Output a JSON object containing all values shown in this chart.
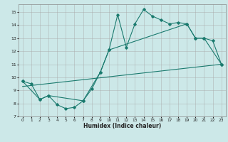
{
  "title": "",
  "xlabel": "Humidex (Indice chaleur)",
  "ylabel": "",
  "bg_color": "#cce8e8",
  "line_color": "#1a7a6e",
  "grid_color": "#aaaaaa",
  "xlim": [
    -0.5,
    23.5
  ],
  "ylim": [
    7,
    15.6
  ],
  "xticks": [
    0,
    1,
    2,
    3,
    4,
    5,
    6,
    7,
    8,
    9,
    10,
    11,
    12,
    13,
    14,
    15,
    16,
    17,
    18,
    19,
    20,
    21,
    22,
    23
  ],
  "yticks": [
    7,
    8,
    9,
    10,
    11,
    12,
    13,
    14,
    15
  ],
  "line1_x": [
    0,
    1,
    2,
    3,
    4,
    5,
    6,
    7,
    8,
    9,
    10,
    11,
    12,
    13,
    14,
    15,
    16,
    17,
    18,
    19,
    20,
    21,
    22,
    23
  ],
  "line1_y": [
    9.7,
    9.5,
    8.3,
    8.6,
    7.9,
    7.6,
    7.7,
    8.2,
    9.1,
    10.4,
    12.1,
    14.8,
    12.3,
    14.1,
    15.2,
    14.7,
    14.4,
    14.1,
    14.2,
    14.1,
    13.0,
    13.0,
    12.8,
    11.0
  ],
  "line2_x": [
    0,
    2,
    3,
    7,
    9,
    10,
    19,
    20,
    21,
    23
  ],
  "line2_y": [
    9.7,
    8.3,
    8.6,
    8.2,
    10.4,
    12.1,
    14.1,
    13.0,
    13.0,
    11.0
  ],
  "line3_x": [
    0,
    23
  ],
  "line3_y": [
    9.3,
    11.0
  ],
  "figsize": [
    3.2,
    2.0
  ],
  "dpi": 100
}
